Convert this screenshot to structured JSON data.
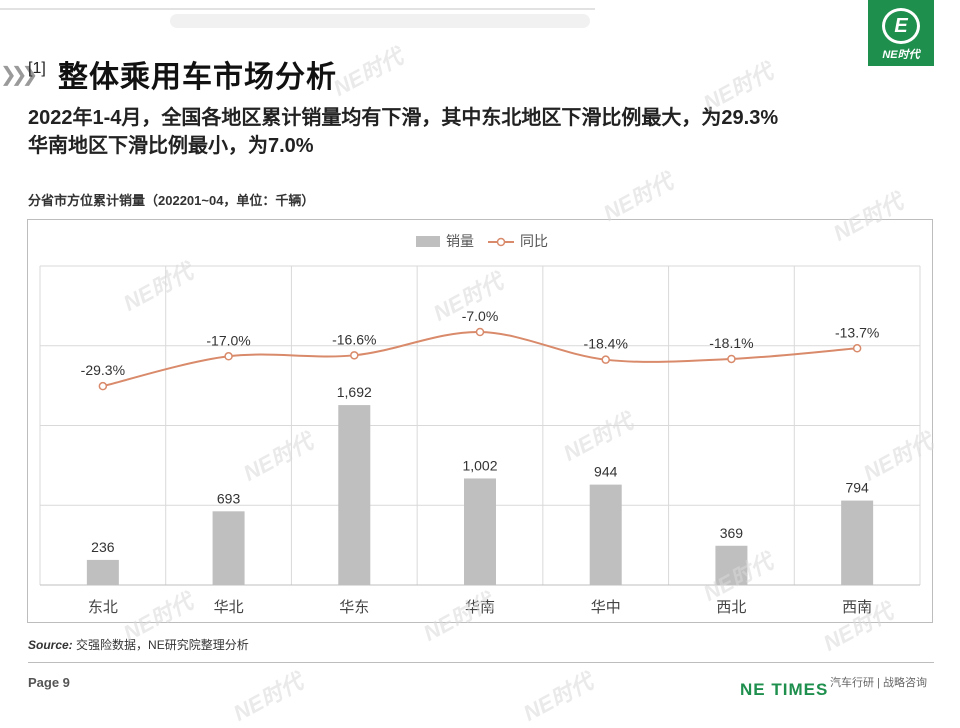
{
  "header": {
    "title_num": "[1]",
    "title": "整体乘用车市场分析",
    "subtitle_line1": "2022年1-4月，全国各地区累计销量均有下滑，其中东北地区下滑比例最大，为29.3%",
    "subtitle_line2": "华南地区下滑比例最小，为7.0%",
    "logo_mark": "E",
    "logo_text": "NE时代"
  },
  "chart_caption": "分省市方位累计销量（202201~04，单位：千辆）",
  "chart_data": {
    "type": "bar",
    "categories": [
      "东北",
      "华北",
      "华东",
      "华南",
      "华中",
      "西北",
      "西南"
    ],
    "series": [
      {
        "name": "销量",
        "kind": "bar",
        "values": [
          236,
          693,
          1692,
          1002,
          944,
          369,
          794
        ],
        "labels": [
          "236",
          "693",
          "1,692",
          "1,002",
          "944",
          "369",
          "794"
        ],
        "color": "#bfbfbf"
      },
      {
        "name": "同比",
        "kind": "line",
        "values": [
          -29.3,
          -17.0,
          -16.6,
          -7.0,
          -18.4,
          -18.1,
          -13.7
        ],
        "labels": [
          "-29.3%",
          "-17.0%",
          "-16.6%",
          "-7.0%",
          "-18.4%",
          "-18.1%",
          "-13.7%"
        ],
        "color": "#d98a6a"
      }
    ],
    "legend_position": "top",
    "grid": true,
    "bar_ylim": [
      0,
      3000
    ]
  },
  "source": {
    "label": "Source:",
    "text": "交强险数据，NE研究院整理分析"
  },
  "footer": {
    "page": "Page 9",
    "brand": "NE TIMES",
    "tagline": "汽车行研 | 战略咨询"
  },
  "watermark": "NE时代"
}
